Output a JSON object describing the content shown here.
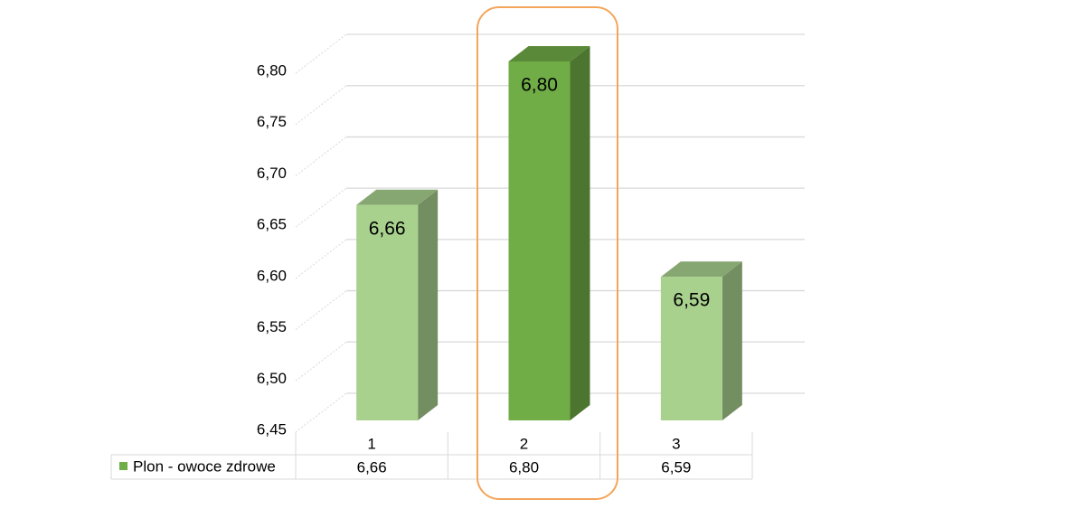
{
  "chart_data": {
    "type": "bar3d",
    "categories": [
      "1",
      "2",
      "3"
    ],
    "series": [
      {
        "name": "Plon - owoce zdrowe",
        "color": "#70ad47",
        "values": [
          6.66,
          6.8,
          6.59
        ],
        "value_labels": [
          "6,66",
          "6,80",
          "6,59"
        ],
        "bar_colors": [
          "#a9d18e",
          "#70ad47",
          "#a9d18e"
        ]
      }
    ],
    "ylim": [
      6.45,
      6.8
    ],
    "yticks": [
      {
        "value": 6.45,
        "label": "6,45"
      },
      {
        "value": 6.5,
        "label": "6,50"
      },
      {
        "value": 6.55,
        "label": "6,55"
      },
      {
        "value": 6.6,
        "label": "6,60"
      },
      {
        "value": 6.65,
        "label": "6,65"
      },
      {
        "value": 6.7,
        "label": "6,70"
      },
      {
        "value": 6.75,
        "label": "6,75"
      },
      {
        "value": 6.8,
        "label": "6,80"
      }
    ],
    "grid": true,
    "data_table": true
  }
}
